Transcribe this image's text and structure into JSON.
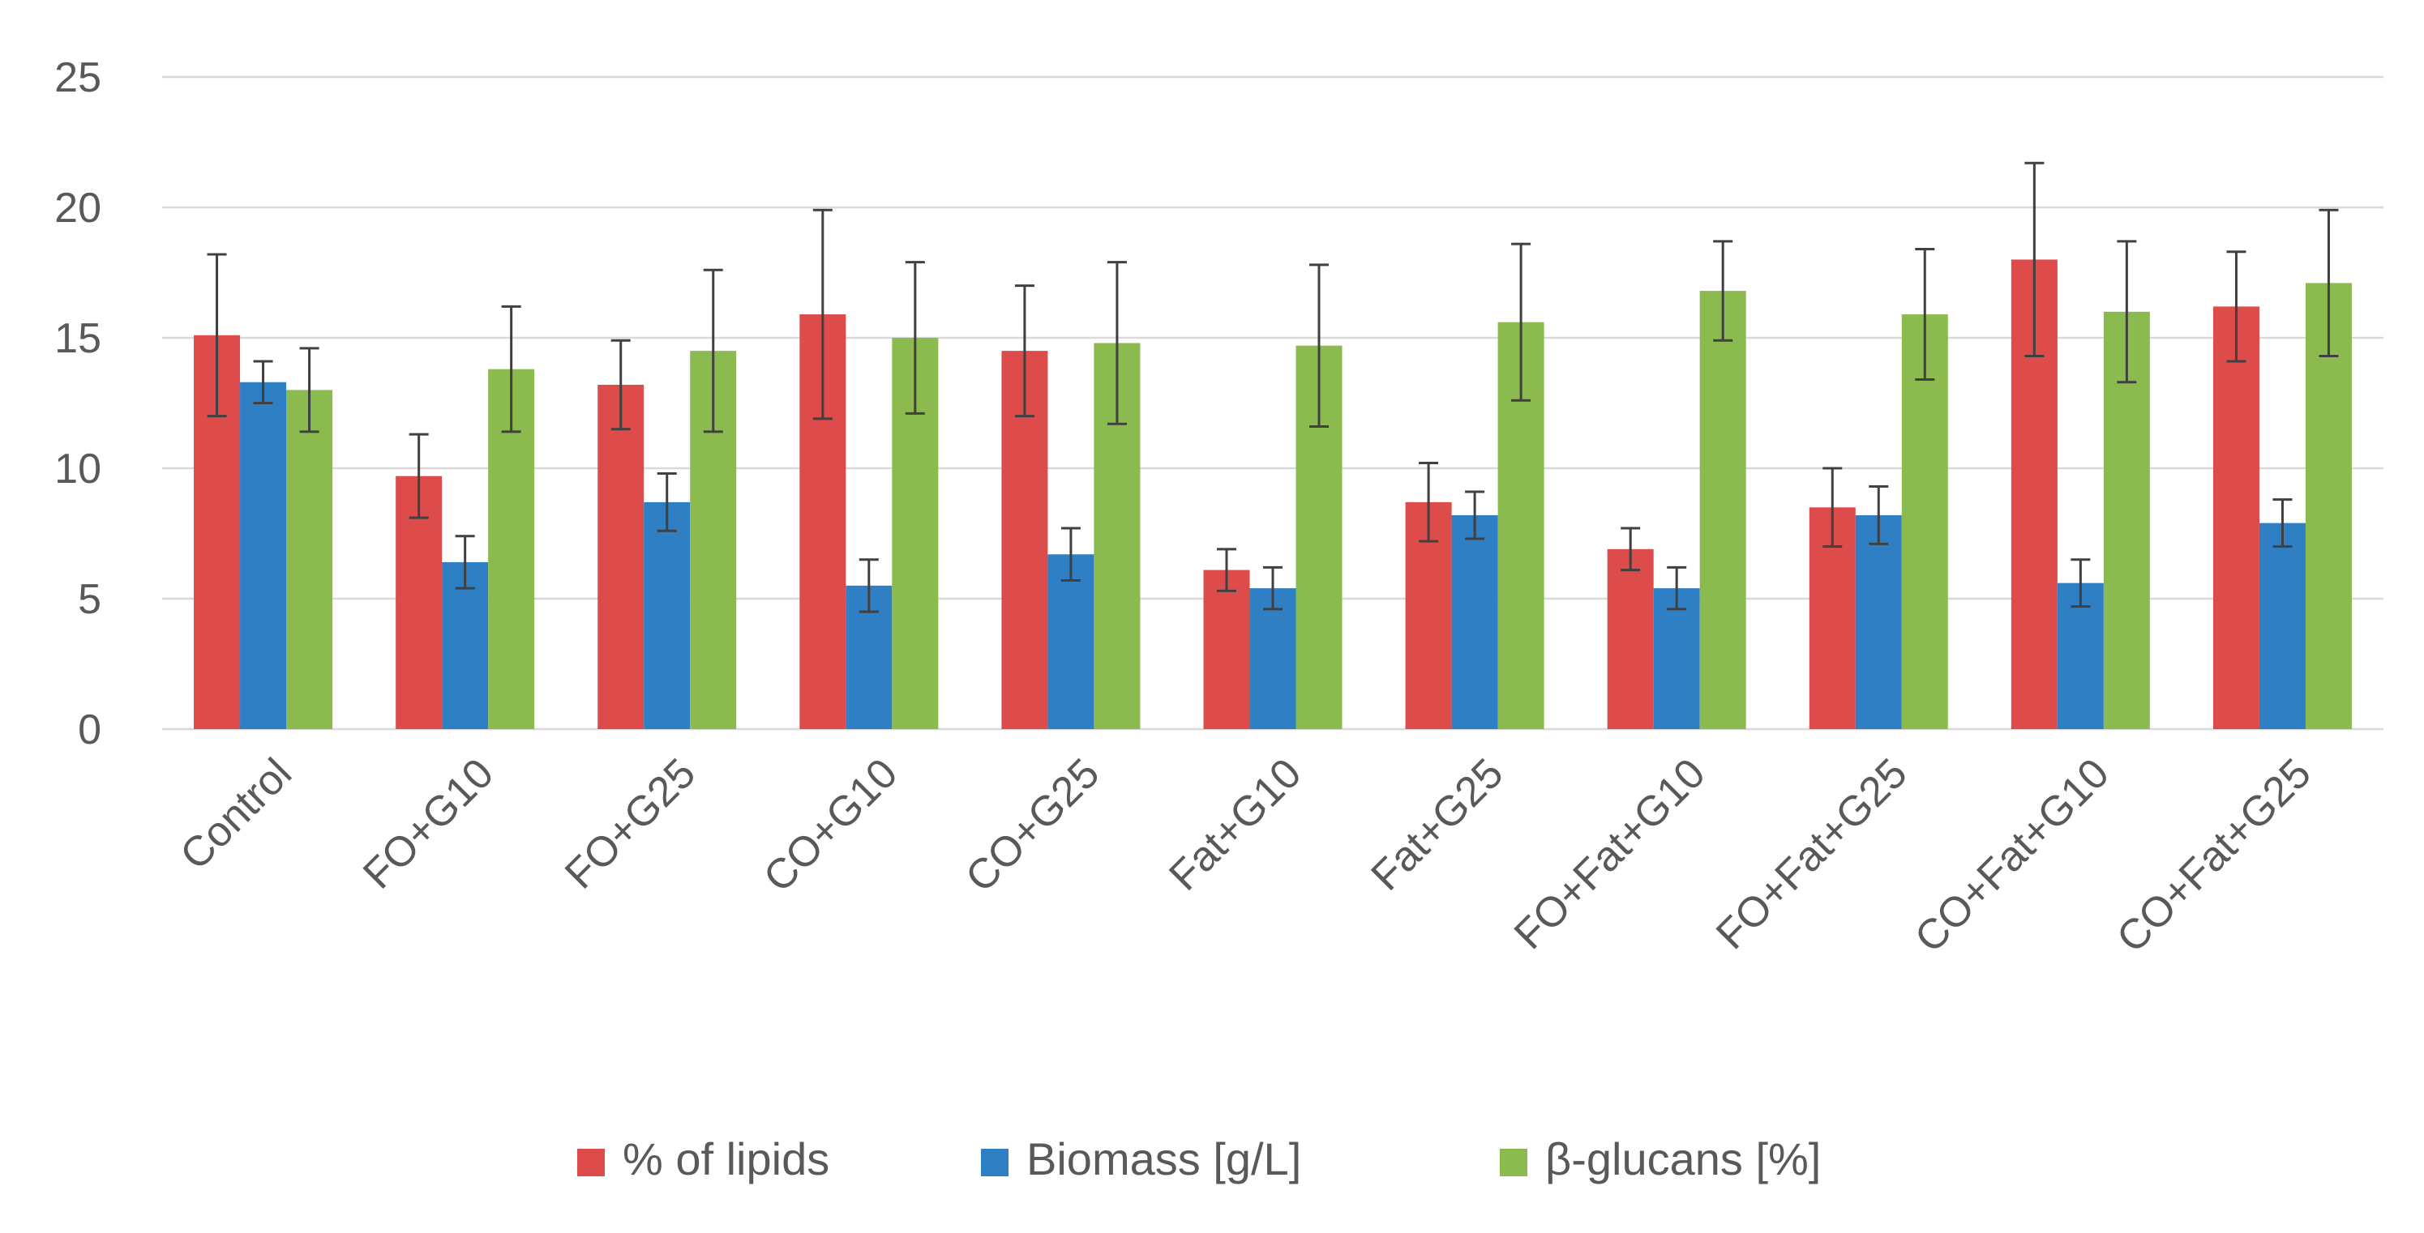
{
  "chart_data": {
    "type": "bar",
    "title": "",
    "xlabel": "",
    "ylabel": "",
    "ylim": [
      0,
      25
    ],
    "yticks": [
      "0",
      "5",
      "10",
      "15",
      "20",
      "25"
    ],
    "grid": true,
    "legend_position": "bottom",
    "categories": [
      "Control",
      "FO+G10",
      "FO+G25",
      "CO+G10",
      "CO+G25",
      "Fat+G10",
      "Fat+G25",
      "FO+Fat+G10",
      "FO+Fat+G25",
      "CO+Fat+G10",
      "CO+Fat+G25"
    ],
    "series": [
      {
        "name": "% of lipids",
        "color": "#de4b4b",
        "values": [
          15.1,
          9.7,
          13.2,
          15.9,
          14.5,
          6.1,
          8.7,
          6.9,
          8.5,
          18.0,
          16.2
        ],
        "errors": [
          3.1,
          1.6,
          1.7,
          4.0,
          2.5,
          0.8,
          1.5,
          0.8,
          1.5,
          3.7,
          2.1
        ]
      },
      {
        "name": "Biomass [g/L]",
        "color": "#2e7fc4",
        "values": [
          13.3,
          6.4,
          8.7,
          5.5,
          6.7,
          5.4,
          8.2,
          5.4,
          8.2,
          5.6,
          7.9
        ],
        "errors": [
          0.8,
          1.0,
          1.1,
          1.0,
          1.0,
          0.8,
          0.9,
          0.8,
          1.1,
          0.9,
          0.9
        ]
      },
      {
        "name": "β-glucans [%]",
        "color": "#8bbb4f",
        "values": [
          13.0,
          13.8,
          14.5,
          15.0,
          14.8,
          14.7,
          15.6,
          16.8,
          15.9,
          16.0,
          17.1
        ],
        "errors": [
          1.6,
          2.4,
          3.1,
          2.9,
          3.1,
          3.1,
          3.0,
          1.9,
          2.5,
          2.7,
          2.8
        ]
      }
    ]
  }
}
